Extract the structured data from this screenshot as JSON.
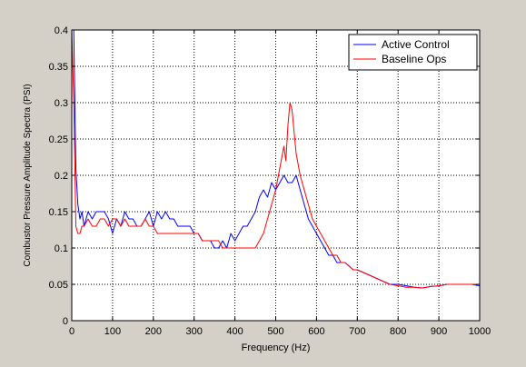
{
  "chart_data": {
    "type": "line",
    "xlabel": "Frequency (Hz)",
    "ylabel": "Combustor Pressure Amplitude Spectra (PSI)",
    "xlim": [
      0,
      1000
    ],
    "ylim": [
      0,
      0.4
    ],
    "xticks": [
      0,
      100,
      200,
      300,
      400,
      500,
      600,
      700,
      800,
      900,
      1000
    ],
    "yticks": [
      0,
      0.05,
      0.1,
      0.15,
      0.2,
      0.25,
      0.3,
      0.35,
      0.4
    ],
    "xtick_labels": [
      "0",
      "100",
      "200",
      "300",
      "400",
      "500",
      "600",
      "700",
      "800",
      "900",
      "1000"
    ],
    "ytick_labels": [
      "0",
      "0.05",
      "0.1",
      "0.15",
      "0.2",
      "0.25",
      "0.3",
      "0.35",
      "0.4"
    ],
    "grid": true,
    "grid_style": "dotted",
    "legend_position": "top-right",
    "series": [
      {
        "name": "Active Control",
        "color": "#0000ff",
        "x": [
          0,
          5,
          10,
          15,
          20,
          25,
          30,
          40,
          50,
          60,
          70,
          80,
          90,
          100,
          110,
          120,
          130,
          140,
          150,
          160,
          170,
          180,
          190,
          200,
          210,
          220,
          230,
          240,
          250,
          260,
          270,
          280,
          290,
          300,
          310,
          320,
          330,
          340,
          350,
          360,
          370,
          380,
          390,
          400,
          410,
          420,
          430,
          440,
          450,
          460,
          470,
          480,
          490,
          500,
          510,
          520,
          530,
          540,
          550,
          560,
          570,
          580,
          590,
          600,
          610,
          620,
          630,
          640,
          650,
          660,
          670,
          680,
          690,
          700,
          720,
          740,
          760,
          780,
          800,
          820,
          840,
          860,
          880,
          900,
          920,
          940,
          960,
          980,
          1000
        ],
        "y": [
          0.4,
          0.4,
          0.21,
          0.16,
          0.14,
          0.15,
          0.13,
          0.15,
          0.14,
          0.15,
          0.15,
          0.15,
          0.14,
          0.12,
          0.14,
          0.13,
          0.15,
          0.14,
          0.14,
          0.13,
          0.13,
          0.14,
          0.15,
          0.13,
          0.15,
          0.14,
          0.15,
          0.14,
          0.14,
          0.13,
          0.13,
          0.13,
          0.13,
          0.12,
          0.12,
          0.11,
          0.11,
          0.11,
          0.1,
          0.1,
          0.11,
          0.1,
          0.12,
          0.11,
          0.12,
          0.13,
          0.13,
          0.14,
          0.15,
          0.17,
          0.18,
          0.17,
          0.19,
          0.18,
          0.19,
          0.2,
          0.19,
          0.19,
          0.2,
          0.18,
          0.16,
          0.14,
          0.13,
          0.12,
          0.11,
          0.1,
          0.09,
          0.09,
          0.08,
          0.08,
          0.08,
          0.075,
          0.07,
          0.07,
          0.065,
          0.06,
          0.055,
          0.05,
          0.05,
          0.048,
          0.046,
          0.045,
          0.047,
          0.048,
          0.05,
          0.05,
          0.05,
          0.05,
          0.048
        ]
      },
      {
        "name": "Baseline Ops",
        "color": "#ff0000",
        "x": [
          0,
          5,
          10,
          15,
          20,
          25,
          30,
          40,
          50,
          60,
          70,
          80,
          90,
          100,
          110,
          120,
          130,
          140,
          150,
          160,
          170,
          180,
          190,
          200,
          210,
          220,
          230,
          240,
          250,
          260,
          270,
          280,
          290,
          300,
          310,
          320,
          330,
          340,
          350,
          360,
          370,
          380,
          390,
          400,
          410,
          420,
          430,
          440,
          450,
          460,
          470,
          480,
          490,
          500,
          510,
          520,
          525,
          530,
          535,
          540,
          545,
          550,
          560,
          570,
          580,
          590,
          600,
          610,
          620,
          630,
          640,
          650,
          660,
          670,
          680,
          690,
          700,
          720,
          740,
          760,
          780,
          800,
          820,
          840,
          860,
          880,
          900,
          920,
          940,
          960,
          980,
          1000
        ],
        "y": [
          0.4,
          0.3,
          0.13,
          0.12,
          0.12,
          0.13,
          0.13,
          0.14,
          0.13,
          0.13,
          0.14,
          0.14,
          0.13,
          0.14,
          0.14,
          0.13,
          0.14,
          0.13,
          0.13,
          0.13,
          0.13,
          0.14,
          0.13,
          0.13,
          0.12,
          0.12,
          0.12,
          0.12,
          0.12,
          0.12,
          0.12,
          0.12,
          0.12,
          0.12,
          0.12,
          0.11,
          0.11,
          0.11,
          0.11,
          0.11,
          0.1,
          0.1,
          0.1,
          0.1,
          0.1,
          0.1,
          0.1,
          0.1,
          0.1,
          0.11,
          0.12,
          0.14,
          0.16,
          0.18,
          0.21,
          0.24,
          0.22,
          0.27,
          0.3,
          0.29,
          0.26,
          0.23,
          0.2,
          0.18,
          0.16,
          0.14,
          0.13,
          0.12,
          0.11,
          0.1,
          0.09,
          0.09,
          0.08,
          0.08,
          0.075,
          0.07,
          0.07,
          0.065,
          0.06,
          0.055,
          0.05,
          0.048,
          0.046,
          0.046,
          0.045,
          0.047,
          0.048,
          0.05,
          0.05,
          0.05,
          0.05,
          0.05
        ]
      }
    ]
  }
}
